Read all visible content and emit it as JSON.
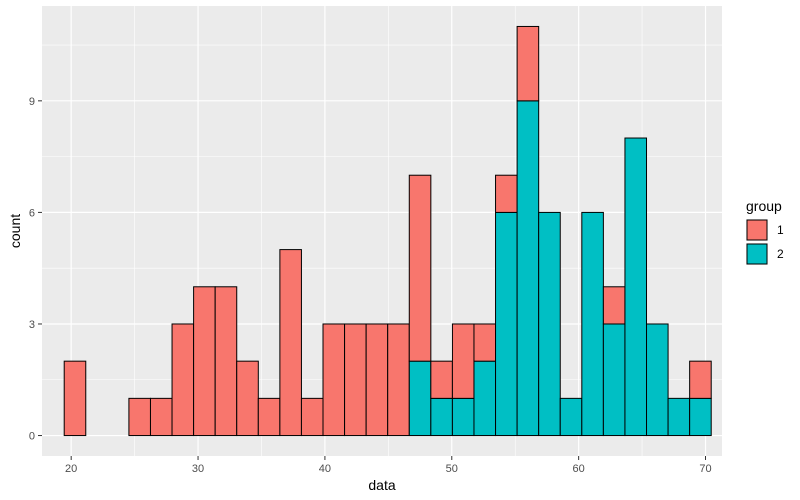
{
  "chart_data": {
    "type": "bar",
    "subtype": "stacked-histogram",
    "xlabel": "data",
    "ylabel": "count",
    "xlim": [
      17.7,
      71.3
    ],
    "ylim": [
      -0.55,
      11.55
    ],
    "x_ticks": [
      20,
      30,
      40,
      50,
      60,
      70
    ],
    "y_ticks": [
      0,
      3,
      6,
      9
    ],
    "bin_width": 1.7,
    "bin_centers": [
      20.3,
      22.0,
      23.7,
      25.4,
      27.1,
      28.8,
      30.5,
      32.2,
      33.9,
      35.6,
      37.3,
      39.0,
      40.7,
      42.4,
      44.1,
      45.8,
      47.5,
      49.2,
      50.9,
      52.6,
      54.3,
      56.0,
      57.7,
      59.4,
      61.1,
      62.8,
      64.5,
      66.2,
      67.9,
      69.6
    ],
    "series": [
      {
        "name": "2",
        "color": "#00BFC4",
        "values": [
          0,
          0,
          0,
          0,
          0,
          0,
          0,
          0,
          0,
          0,
          0,
          0,
          0,
          0,
          0,
          0,
          2,
          1,
          1,
          2,
          6,
          9,
          6,
          1,
          6,
          3,
          8,
          3,
          1,
          1
        ]
      },
      {
        "name": "1",
        "color": "#F8766D",
        "values": [
          2,
          0,
          0,
          1,
          1,
          3,
          4,
          4,
          2,
          1,
          5,
          1,
          3,
          3,
          3,
          3,
          5,
          1,
          2,
          1,
          1,
          2,
          0,
          0,
          0,
          1,
          0,
          0,
          0,
          1
        ]
      }
    ],
    "legend": {
      "title": "group",
      "position": "right",
      "entries": [
        {
          "label": "1",
          "color": "#F8766D"
        },
        {
          "label": "2",
          "color": "#00BFC4"
        }
      ]
    },
    "grid": true,
    "panel_background": "#EBEBEB",
    "grid_color": "#FFFFFF"
  }
}
